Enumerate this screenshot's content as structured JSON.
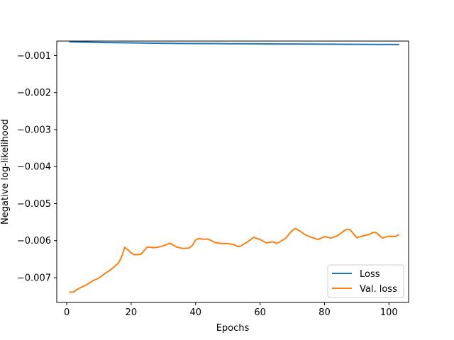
{
  "chart_data": {
    "type": "line",
    "title": "",
    "xlabel": "Epochs",
    "ylabel": "Negative log-likelihood",
    "xlim": [
      -3.1,
      106.1
    ],
    "ylim": [
      -0.00767,
      -0.000608
    ],
    "xticks": [
      0,
      20,
      40,
      60,
      80,
      100
    ],
    "yticks": [
      -0.007,
      -0.006,
      -0.005,
      -0.004,
      -0.003,
      -0.002,
      -0.001
    ],
    "xtick_labels": [
      "0",
      "20",
      "40",
      "60",
      "80",
      "100"
    ],
    "ytick_labels": [
      "−0.007",
      "−0.006",
      "−0.005",
      "−0.004",
      "−0.003",
      "−0.002",
      "−0.001"
    ],
    "grid": false,
    "legend_position": "lower-right",
    "series": [
      {
        "name": "Loss",
        "color": "#1f77b4",
        "x": [
          1,
          5,
          10,
          15,
          20,
          25,
          30,
          35,
          40,
          45,
          50,
          55,
          60,
          65,
          70,
          75,
          80,
          85,
          90,
          95,
          100,
          103
        ],
        "y": [
          -0.000628,
          -0.000635,
          -0.000645,
          -0.000652,
          -0.000657,
          -0.000662,
          -0.000668,
          -0.000672,
          -0.000674,
          -0.000676,
          -0.000679,
          -0.000681,
          -0.000683,
          -0.000686,
          -0.000688,
          -0.00069,
          -0.000692,
          -0.000694,
          -0.000696,
          -0.000698,
          -0.0007,
          -0.000702
        ]
      },
      {
        "name": "Val. loss",
        "color": "#ff7f0e",
        "x": [
          1,
          2,
          4,
          6,
          8,
          10,
          12,
          14,
          16,
          17,
          18,
          19,
          20,
          21,
          23,
          25,
          27,
          28,
          30,
          32,
          34,
          36,
          38,
          39,
          40,
          41,
          42,
          44,
          46,
          48,
          50,
          52,
          53,
          54,
          56,
          58,
          60,
          62,
          64,
          65,
          66,
          68,
          70,
          71,
          72,
          74,
          76,
          78,
          80,
          82,
          84,
          86,
          87,
          88,
          90,
          92,
          94,
          95,
          96,
          98,
          100,
          102,
          103
        ],
        "y": [
          -0.00739,
          -0.00739,
          -0.00728,
          -0.0072,
          -0.00709,
          -0.00701,
          -0.00688,
          -0.00676,
          -0.00661,
          -0.00645,
          -0.00618,
          -0.00625,
          -0.00633,
          -0.00638,
          -0.00637,
          -0.00617,
          -0.00619,
          -0.00618,
          -0.00614,
          -0.00607,
          -0.00617,
          -0.00621,
          -0.0062,
          -0.00613,
          -0.00598,
          -0.00594,
          -0.00596,
          -0.00596,
          -0.00605,
          -0.00608,
          -0.00608,
          -0.00611,
          -0.00616,
          -0.00615,
          -0.00604,
          -0.00591,
          -0.00597,
          -0.00606,
          -0.00603,
          -0.00607,
          -0.00604,
          -0.00593,
          -0.00572,
          -0.00567,
          -0.00572,
          -0.00584,
          -0.00591,
          -0.00597,
          -0.00589,
          -0.00593,
          -0.00587,
          -0.00574,
          -0.00569,
          -0.00571,
          -0.00592,
          -0.00587,
          -0.00583,
          -0.00578,
          -0.00578,
          -0.00593,
          -0.00588,
          -0.00589,
          -0.00584
        ]
      }
    ]
  }
}
